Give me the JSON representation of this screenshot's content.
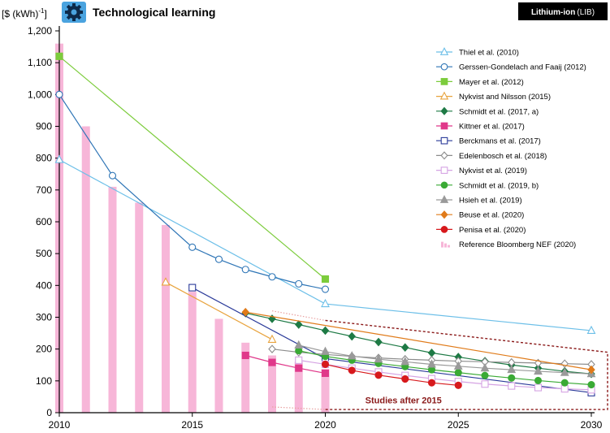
{
  "header": {
    "title": "Technological learning",
    "icon": "gear-icon",
    "badge_main": "Lithium-ion",
    "badge_sub": "(LIB)"
  },
  "chart_data": {
    "type": "line",
    "ylabel": "[$ (kWh)",
    "ylabel_exp": "-1",
    "ylabel_close": "]",
    "xlim": [
      2010,
      2030
    ],
    "ylim": [
      0,
      1200
    ],
    "xticks": [
      2010,
      2015,
      2020,
      2025,
      2030
    ],
    "yticks": [
      0,
      100,
      200,
      300,
      400,
      500,
      600,
      700,
      800,
      900,
      1000,
      1100,
      1200
    ],
    "ytick_labels": [
      "0",
      "100",
      "200",
      "300",
      "400",
      "500",
      "600",
      "700",
      "800",
      "900",
      "1,000",
      "1,100",
      "1,200"
    ],
    "annotation": "Studies after 2015",
    "legend_position": "top-right",
    "reference": {
      "name": "Reference Bloomberg NEF (2020)",
      "color": "#f7b6d8",
      "x": [
        2010,
        2011,
        2012,
        2013,
        2014,
        2015,
        2016,
        2017,
        2018,
        2019,
        2020
      ],
      "values": [
        1160,
        900,
        710,
        660,
        590,
        380,
        295,
        220,
        180,
        160,
        137
      ]
    },
    "series": [
      {
        "name": "Thiel et al. (2010)",
        "color": "#6cbfe8",
        "marker": "triangle-open",
        "x": [
          2010,
          2020,
          2030
        ],
        "values": [
          795,
          342,
          258
        ]
      },
      {
        "name": "Gerssen-Gondelach and Faaij (2012)",
        "color": "#2e75b6",
        "marker": "circle-open",
        "x": [
          2010,
          2012,
          2015,
          2016,
          2017,
          2018,
          2019,
          2020
        ],
        "values": [
          1000,
          745,
          520,
          482,
          450,
          427,
          405,
          388
        ]
      },
      {
        "name": "Mayer et al. (2012)",
        "color": "#7ccc3c",
        "marker": "square",
        "x": [
          2010,
          2020
        ],
        "values": [
          1120,
          420
        ]
      },
      {
        "name": "Nykvist and Nilsson (2015)",
        "color": "#e8a33d",
        "marker": "triangle-open",
        "x": [
          2014,
          2018
        ],
        "values": [
          410,
          230
        ]
      },
      {
        "name": "Schmidt et al. (2017, a)",
        "color": "#1e7a45",
        "marker": "diamond",
        "x": [
          2017,
          2018,
          2019,
          2020,
          2021,
          2022,
          2023,
          2024,
          2025,
          2026,
          2027,
          2028,
          2029,
          2030
        ],
        "values": [
          313,
          295,
          277,
          258,
          240,
          222,
          205,
          188,
          175,
          162,
          150,
          140,
          130,
          122
        ]
      },
      {
        "name": "Kittner et al. (2017)",
        "color": "#e0388a",
        "marker": "square",
        "x": [
          2017,
          2018,
          2019,
          2020
        ],
        "values": [
          180,
          158,
          140,
          124
        ]
      },
      {
        "name": "Berckmans et al. (2017)",
        "color": "#2a3a99",
        "marker": "square-open",
        "x": [
          2015,
          2020,
          2030
        ],
        "values": [
          393,
          170,
          63
        ]
      },
      {
        "name": "Edelenbosch et al. (2018)",
        "color": "#8c8c8c",
        "marker": "diamond-open",
        "x": [
          2018,
          2019,
          2020,
          2021,
          2022,
          2023,
          2024,
          2025,
          2026,
          2027,
          2028,
          2029,
          2030
        ],
        "values": [
          200,
          190,
          183,
          177,
          172,
          168,
          165,
          162,
          160,
          158,
          156,
          154,
          152
        ]
      },
      {
        "name": "Nykvist et al. (2019)",
        "color": "#d5a3e3",
        "marker": "square-open",
        "x": [
          2019,
          2020,
          2021,
          2022,
          2023,
          2024,
          2025,
          2026,
          2027,
          2028,
          2029,
          2030
        ],
        "values": [
          165,
          152,
          140,
          128,
          117,
          107,
          98,
          90,
          84,
          79,
          75,
          72
        ]
      },
      {
        "name": "Schmidt et al. (2019, b)",
        "color": "#3aaa35",
        "marker": "circle",
        "x": [
          2019,
          2020,
          2021,
          2022,
          2023,
          2024,
          2025,
          2026,
          2027,
          2028,
          2029,
          2030
        ],
        "values": [
          195,
          177,
          165,
          155,
          145,
          135,
          126,
          117,
          109,
          101,
          94,
          88
        ]
      },
      {
        "name": "Hsieh et al. (2019)",
        "color": "#9a9a9a",
        "marker": "triangle",
        "x": [
          2019,
          2020,
          2021,
          2022,
          2023,
          2024,
          2025,
          2026,
          2027,
          2028,
          2029,
          2030
        ],
        "values": [
          212,
          192,
          178,
          168,
          160,
          152,
          146,
          140,
          135,
          130,
          126,
          122
        ]
      },
      {
        "name": "Beuse et al. (2020)",
        "color": "#e07b1a",
        "marker": "diamond",
        "x": [
          2017,
          2030
        ],
        "values": [
          316,
          135
        ]
      },
      {
        "name": "Penisa et al. (2020)",
        "color": "#d7191c",
        "marker": "circle",
        "x": [
          2020,
          2021,
          2022,
          2023,
          2024,
          2025
        ],
        "values": [
          152,
          133,
          118,
          106,
          94,
          86
        ]
      }
    ]
  }
}
